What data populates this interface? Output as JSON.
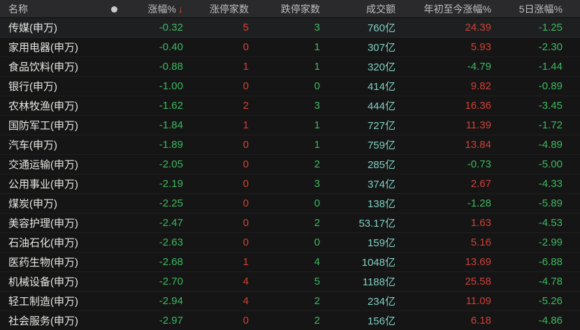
{
  "table": {
    "header": {
      "name_label": "名称",
      "dot_icon": "circle-indicator",
      "change_label": "涨幅%",
      "sort_arrow": "↓",
      "limit_up_label": "涨停家数",
      "limit_down_label": "跌停家数",
      "turnover_label": "成交额",
      "ytd_label": "年初至今涨幅%",
      "d5_label": "5日涨幅%"
    },
    "sort": {
      "column": "涨幅%",
      "direction": "desc"
    },
    "rows": [
      {
        "name": "传媒(申万)",
        "change": "-0.32",
        "limit_up": "5",
        "limit_down": "3",
        "turnover": "760亿",
        "ytd": "24.39",
        "d5": "-1.25"
      },
      {
        "name": "家用电器(申万)",
        "change": "-0.40",
        "limit_up": "0",
        "limit_down": "1",
        "turnover": "307亿",
        "ytd": "5.93",
        "d5": "-2.30"
      },
      {
        "name": "食品饮料(申万)",
        "change": "-0.88",
        "limit_up": "1",
        "limit_down": "1",
        "turnover": "320亿",
        "ytd": "-4.79",
        "d5": "-1.44"
      },
      {
        "name": "银行(申万)",
        "change": "-1.00",
        "limit_up": "0",
        "limit_down": "0",
        "turnover": "414亿",
        "ytd": "9.82",
        "d5": "-0.89"
      },
      {
        "name": "农林牧渔(申万)",
        "change": "-1.62",
        "limit_up": "2",
        "limit_down": "3",
        "turnover": "444亿",
        "ytd": "16.36",
        "d5": "-3.45"
      },
      {
        "name": "国防军工(申万)",
        "change": "-1.84",
        "limit_up": "1",
        "limit_down": "1",
        "turnover": "727亿",
        "ytd": "11.39",
        "d5": "-1.72"
      },
      {
        "name": "汽车(申万)",
        "change": "-1.89",
        "limit_up": "0",
        "limit_down": "1",
        "turnover": "759亿",
        "ytd": "13.84",
        "d5": "-4.89"
      },
      {
        "name": "交通运输(申万)",
        "change": "-2.05",
        "limit_up": "0",
        "limit_down": "2",
        "turnover": "285亿",
        "ytd": "-0.73",
        "d5": "-5.00"
      },
      {
        "name": "公用事业(申万)",
        "change": "-2.19",
        "limit_up": "0",
        "limit_down": "3",
        "turnover": "374亿",
        "ytd": "2.67",
        "d5": "-4.33"
      },
      {
        "name": "煤炭(申万)",
        "change": "-2.25",
        "limit_up": "0",
        "limit_down": "0",
        "turnover": "138亿",
        "ytd": "-1.28",
        "d5": "-5.89"
      },
      {
        "name": "美容护理(申万)",
        "change": "-2.47",
        "limit_up": "0",
        "limit_down": "2",
        "turnover": "53.17亿",
        "ytd": "1.63",
        "d5": "-4.53"
      },
      {
        "name": "石油石化(申万)",
        "change": "-2.63",
        "limit_up": "0",
        "limit_down": "0",
        "turnover": "159亿",
        "ytd": "5.16",
        "d5": "-2.99"
      },
      {
        "name": "医药生物(申万)",
        "change": "-2.68",
        "limit_up": "1",
        "limit_down": "4",
        "turnover": "1048亿",
        "ytd": "13.69",
        "d5": "-6.88"
      },
      {
        "name": "机械设备(申万)",
        "change": "-2.70",
        "limit_up": "4",
        "limit_down": "5",
        "turnover": "1188亿",
        "ytd": "25.58",
        "d5": "-4.78"
      },
      {
        "name": "轻工制造(申万)",
        "change": "-2.94",
        "limit_up": "4",
        "limit_down": "2",
        "turnover": "234亿",
        "ytd": "11.09",
        "d5": "-5.26"
      },
      {
        "name": "社会服务(申万)",
        "change": "-2.97",
        "limit_up": "0",
        "limit_down": "2",
        "turnover": "156亿",
        "ytd": "6.18",
        "d5": "-4.86"
      }
    ]
  },
  "colors": {
    "up_red": "#cf4038",
    "down_green": "#3cb95f",
    "turnover_teal": "#7fcfc3",
    "sort_arrow_orange": "#e0512c",
    "header_bg": "#2a2a2c",
    "body_bg": "#151515",
    "dot_gray": "#c9c9c9"
  }
}
